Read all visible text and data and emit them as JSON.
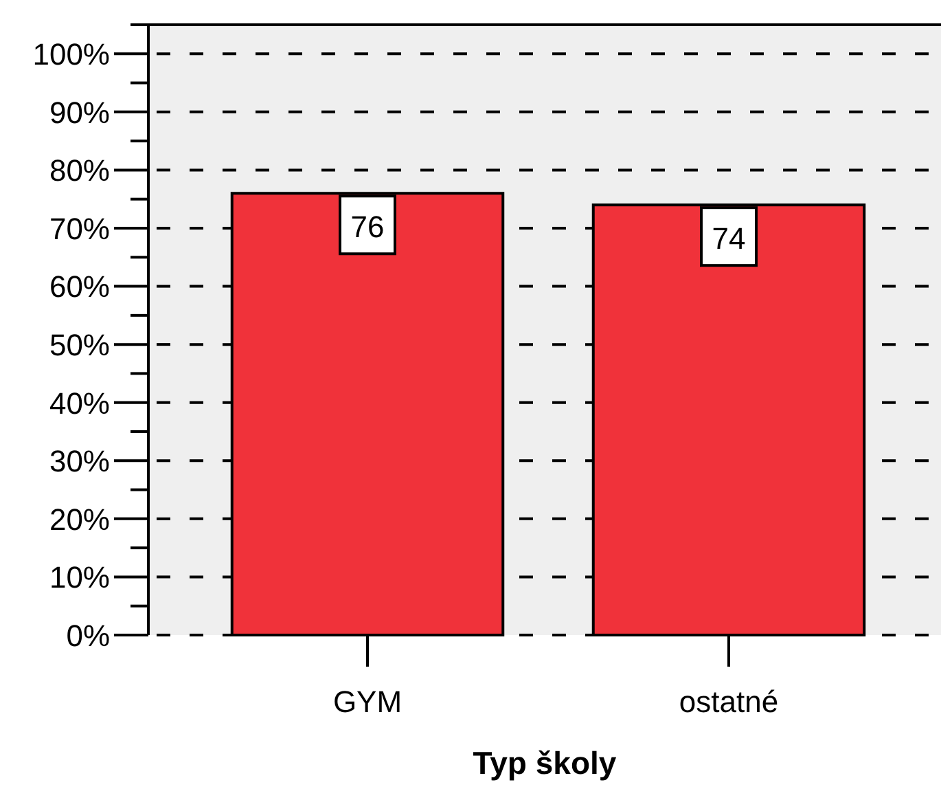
{
  "chart_data": {
    "type": "bar",
    "xlabel": "Typ školy",
    "categories": [
      "GYM",
      "ostatné"
    ],
    "values": [
      76,
      74
    ],
    "color": "#f0323a",
    "data_labels": true,
    "grid": "y",
    "ylim": [
      0,
      105
    ],
    "yticks": [
      {
        "value": 0,
        "label": "0%"
      },
      {
        "value": 5,
        "label": null
      },
      {
        "value": 10,
        "label": "10%"
      },
      {
        "value": 15,
        "label": null
      },
      {
        "value": 20,
        "label": "20%"
      },
      {
        "value": 25,
        "label": null
      },
      {
        "value": 30,
        "label": "30%"
      },
      {
        "value": 35,
        "label": null
      },
      {
        "value": 40,
        "label": "40%"
      },
      {
        "value": 45,
        "label": null
      },
      {
        "value": 50,
        "label": "50%"
      },
      {
        "value": 55,
        "label": null
      },
      {
        "value": 60,
        "label": "60%"
      },
      {
        "value": 65,
        "label": null
      },
      {
        "value": 70,
        "label": "70%"
      },
      {
        "value": 75,
        "label": null
      },
      {
        "value": 80,
        "label": "80%"
      },
      {
        "value": 85,
        "label": null
      },
      {
        "value": 90,
        "label": "90%"
      },
      {
        "value": 95,
        "label": null
      },
      {
        "value": 100,
        "label": "100%"
      },
      {
        "value": 105,
        "label": null
      }
    ]
  }
}
